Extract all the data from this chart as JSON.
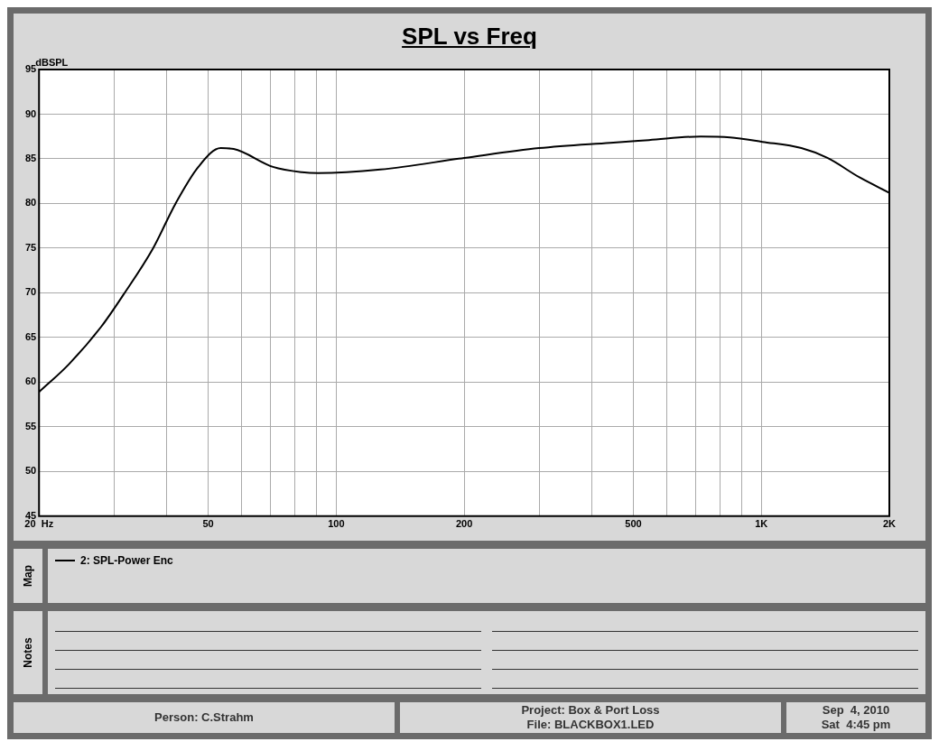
{
  "chart_data": {
    "type": "line",
    "title": "SPL vs Freq",
    "ylabel": "dBSPL",
    "log": "x",
    "grid": true,
    "legend": "bottom",
    "marker": "none",
    "line_style": "solid",
    "xlim": [
      20,
      2000
    ],
    "ylim": [
      45,
      95
    ],
    "xticks": [
      {
        "value": 20,
        "label": "20  Hz"
      },
      {
        "value": 30,
        "label": null
      },
      {
        "value": 40,
        "label": null
      },
      50,
      {
        "value": 60,
        "label": null
      },
      {
        "value": 70,
        "label": null
      },
      {
        "value": 80,
        "label": null
      },
      {
        "value": 90,
        "label": null
      },
      100,
      200,
      {
        "value": 300,
        "label": null
      },
      {
        "value": 400,
        "label": null
      },
      500,
      {
        "value": 600,
        "label": null
      },
      {
        "value": 700,
        "label": null
      },
      {
        "value": 800,
        "label": null
      },
      {
        "value": 900,
        "label": null
      },
      {
        "value": 1000,
        "label": "1K"
      },
      {
        "value": 2000,
        "label": "2K"
      }
    ],
    "yticks": [
      45,
      50,
      55,
      60,
      65,
      70,
      75,
      80,
      85,
      90,
      95
    ],
    "series": [
      {
        "name": "2: SPL-Power Enc",
        "color": "#000000",
        "x": [
          20,
          23.5,
          28,
          31.6,
          37.1,
          41.9,
          47.4,
          53.5,
          57.4,
          71,
          83,
          90.6,
          127,
          200,
          300,
          441,
          544,
          720,
          844,
          1006,
          1242,
          1430,
          1705,
          2000
        ],
        "values": [
          58.9,
          62.0,
          66.2,
          69.8,
          75.0,
          80.0,
          84.1,
          86.2,
          86.1,
          84.1,
          83.5,
          83.4,
          83.8,
          85.1,
          86.2,
          86.8,
          87.1,
          87.5,
          87.4,
          86.9,
          86.2,
          85.1,
          82.9,
          81.2
        ]
      }
    ],
    "annotations": [
      "Map",
      "Notes",
      "Person: C.Strahm",
      "Project: Box & Port Loss",
      "File: BLACKBOX1.LED",
      "Sep  4, 2010",
      "Sat  4:45 pm"
    ]
  }
}
